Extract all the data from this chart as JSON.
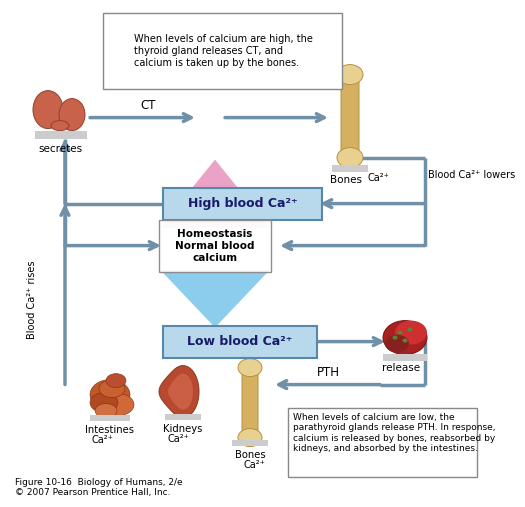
{
  "fig_caption": "Figure 10-16  Biology of Humans, 2/e\n© 2007 Pearson Prentice Hall, Inc.",
  "top_box_text": "When levels of calcium are high, the\nthyroid gland releases CT, and\ncalcium is taken up by the bones.",
  "bottom_box_text": "When levels of calcium are low, the\nparathyroid glands release PTH. In response,\ncalcium is released by bones, reabsorbed by\nkidneys, and absorbed by the intestines.",
  "high_blood_label": "High blood Ca²⁺",
  "low_blood_label": "Low blood Ca²⁺",
  "homeostasis_label": "Homeostasis\nNormal blood\ncalcium",
  "arrow_color": "#7090a8",
  "high_box_fill": "#b8d8ec",
  "low_box_fill": "#b8d8ec",
  "box_edge": "#5588aa",
  "bg_color": "#ffffff",
  "secretes_label": "secretes",
  "ct_label": "CT",
  "bones_top_label": "Bones",
  "ca_top_label": "Ca²⁺",
  "blood_lowers_label": "Blood Ca²⁺ lowers",
  "blood_rises_label": "Blood Ca²⁺ rises",
  "release_label": "release",
  "pth_label": "PTH",
  "intestines_label": "Intestines",
  "kidneys_label": "Kidneys",
  "bones_bottom_label": "Bones",
  "ca_intestines": "Ca²⁺",
  "ca_kidneys": "Ca²⁺",
  "ca_bones_bottom": "Ca²⁺",
  "pink_color": "#e890b8",
  "blue_color": "#80c0e8"
}
